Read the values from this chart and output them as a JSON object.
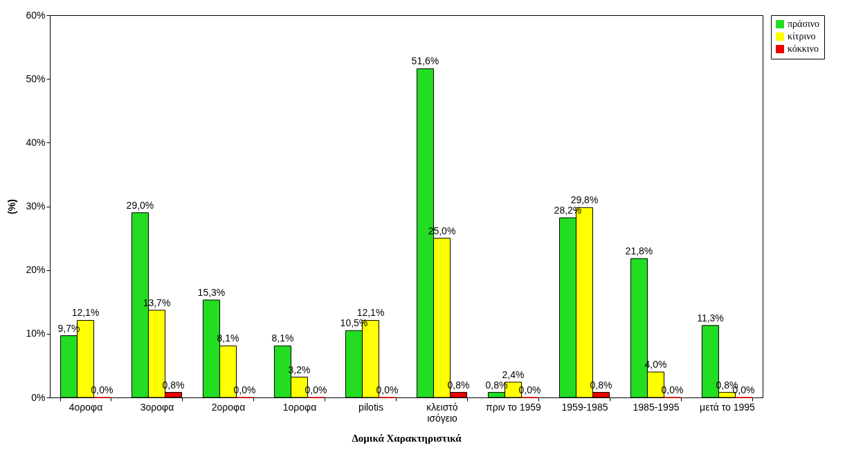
{
  "chart_data": {
    "type": "bar",
    "xlabel": "Δομικά Χαρακτηριστικά",
    "ylabel": "(%)",
    "categories": [
      "4οροφα",
      "3οροφα",
      "2οροφα",
      "1οροφα",
      "pilotis",
      "κλειστό ισόγειο",
      "πριν το 1959",
      "1959-1985",
      "1985-1995",
      "μετά το 1995"
    ],
    "series": [
      {
        "name": "πράσινο",
        "color": "#22dd22",
        "values": [
          9.7,
          29.0,
          15.3,
          8.1,
          10.5,
          51.6,
          0.8,
          28.2,
          21.8,
          11.3
        ],
        "value_labels": [
          "9,7%",
          "29,0%",
          "15,3%",
          "8,1%",
          "10,5%",
          "51,6%",
          "0,8%",
          "28,2%",
          "21,8%",
          "11,3%"
        ]
      },
      {
        "name": "κίτρινο",
        "color": "#ffff00",
        "values": [
          12.1,
          13.7,
          8.1,
          3.2,
          12.1,
          25.0,
          2.4,
          29.8,
          4.0,
          0.8
        ],
        "value_labels": [
          "12,1%",
          "13,7%",
          "8,1%",
          "3,2%",
          "12,1%",
          "25,0%",
          "2,4%",
          "29,8%",
          "4,0%",
          "0,8%"
        ]
      },
      {
        "name": "κόκκινο",
        "color": "#ee0000",
        "values": [
          0,
          0.8,
          0,
          0,
          0,
          0.8,
          0,
          0.8,
          0,
          0
        ],
        "value_labels": [
          "0,0%",
          "0,8%",
          "0,0%",
          "0,0%",
          "0,0%",
          "0,8%",
          "0,0%",
          "0,8%",
          "0,0%",
          "0,0%"
        ]
      }
    ],
    "ylim": [
      0,
      60
    ],
    "yticks": [
      {
        "value": 0,
        "label": "0%"
      },
      {
        "value": 10,
        "label": "10%"
      },
      {
        "value": 20,
        "label": "20%"
      },
      {
        "value": 30,
        "label": "30%"
      },
      {
        "value": 40,
        "label": "40%"
      },
      {
        "value": 50,
        "label": "50%"
      },
      {
        "value": 60,
        "label": "60%"
      }
    ],
    "legend": "right"
  }
}
